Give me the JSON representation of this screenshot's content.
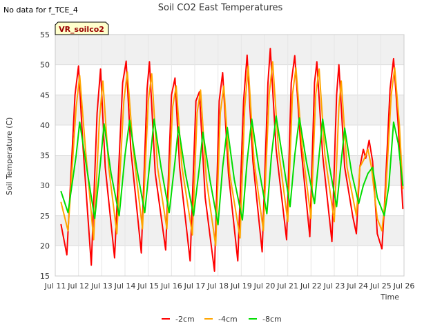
{
  "header": {
    "title": "Soil CO2 East Temperatures",
    "no_data_note": "No data for f_TCE_4",
    "badge": "VR_soilco2"
  },
  "chart_data": {
    "type": "line",
    "title": "Soil CO2 East Temperatures",
    "xlabel": "Time",
    "ylabel": "Soil Temperature (C)",
    "xlim": [
      11,
      26
    ],
    "ylim": [
      15,
      55
    ],
    "x_tick_values": [
      11,
      12,
      13,
      14,
      15,
      16,
      17,
      18,
      19,
      20,
      21,
      22,
      23,
      24,
      25,
      26
    ],
    "x_tick_labels": [
      "Jul 11",
      "Jul 12",
      "Jul 13",
      "Jul 14",
      "Jul 15",
      "Jul 16",
      "Jul 17",
      "Jul 18",
      "Jul 19",
      "Jul 20",
      "Jul 21",
      "Jul 22",
      "Jul 23",
      "Jul 24",
      "Jul 25",
      "Jul 26"
    ],
    "y_ticks": [
      15,
      20,
      25,
      30,
      35,
      40,
      45,
      50,
      55
    ],
    "grid": true,
    "background_bands": "alternating light gray horizontal bands",
    "legend_position": "bottom-center",
    "series": [
      {
        "name": "-2cm",
        "color": "#ff0000",
        "points": [
          [
            11.25,
            23.5
          ],
          [
            11.5,
            18.5
          ],
          [
            11.85,
            45
          ],
          [
            12.0,
            49.8
          ],
          [
            12.2,
            36
          ],
          [
            12.55,
            16.8
          ],
          [
            12.8,
            42
          ],
          [
            12.95,
            49.3
          ],
          [
            13.15,
            33
          ],
          [
            13.55,
            18
          ],
          [
            13.9,
            47
          ],
          [
            14.05,
            50.6
          ],
          [
            14.25,
            36
          ],
          [
            14.7,
            18.8
          ],
          [
            14.95,
            46
          ],
          [
            15.05,
            50.5
          ],
          [
            15.3,
            32
          ],
          [
            15.75,
            19.3
          ],
          [
            16.0,
            45
          ],
          [
            16.15,
            47.8
          ],
          [
            16.35,
            33
          ],
          [
            16.8,
            17.5
          ],
          [
            17.05,
            44
          ],
          [
            17.2,
            45.5
          ],
          [
            17.45,
            28
          ],
          [
            17.85,
            15.8
          ],
          [
            18.05,
            44
          ],
          [
            18.2,
            48.7
          ],
          [
            18.45,
            32
          ],
          [
            18.85,
            17.5
          ],
          [
            19.1,
            44
          ],
          [
            19.25,
            51.6
          ],
          [
            19.5,
            34
          ],
          [
            19.9,
            19
          ],
          [
            20.15,
            47
          ],
          [
            20.25,
            52.7
          ],
          [
            20.5,
            36
          ],
          [
            20.95,
            21
          ],
          [
            21.15,
            47
          ],
          [
            21.3,
            51.5
          ],
          [
            21.55,
            37
          ],
          [
            21.95,
            21.5
          ],
          [
            22.15,
            47
          ],
          [
            22.25,
            50.5
          ],
          [
            22.5,
            35
          ],
          [
            22.9,
            20.7
          ],
          [
            23.1,
            45
          ],
          [
            23.2,
            50
          ],
          [
            23.45,
            33
          ],
          [
            23.8,
            24.8
          ],
          [
            23.95,
            22
          ],
          [
            24.1,
            33
          ],
          [
            24.25,
            36
          ],
          [
            24.35,
            34.5
          ],
          [
            24.5,
            37.5
          ],
          [
            24.65,
            34
          ],
          [
            24.85,
            22
          ],
          [
            25.05,
            19.5
          ],
          [
            25.15,
            26
          ],
          [
            25.4,
            46
          ],
          [
            25.55,
            51
          ],
          [
            25.75,
            40
          ],
          [
            25.95,
            26.2
          ]
        ]
      },
      {
        "name": "-4cm",
        "color": "#ffa500",
        "points": [
          [
            11.25,
            27.2
          ],
          [
            11.55,
            22.5
          ],
          [
            11.9,
            43
          ],
          [
            12.05,
            48.2
          ],
          [
            12.3,
            36
          ],
          [
            12.65,
            21
          ],
          [
            12.9,
            41
          ],
          [
            13.05,
            47.3
          ],
          [
            13.3,
            33
          ],
          [
            13.65,
            22
          ],
          [
            13.95,
            44
          ],
          [
            14.1,
            48.8
          ],
          [
            14.35,
            36
          ],
          [
            14.75,
            22.8
          ],
          [
            15.0,
            44
          ],
          [
            15.15,
            48.5
          ],
          [
            15.4,
            33
          ],
          [
            15.8,
            22.8
          ],
          [
            16.05,
            43
          ],
          [
            16.2,
            46.5
          ],
          [
            16.45,
            33
          ],
          [
            16.9,
            21.8
          ],
          [
            17.1,
            42
          ],
          [
            17.25,
            45.8
          ],
          [
            17.5,
            31
          ],
          [
            17.9,
            20
          ],
          [
            18.1,
            42
          ],
          [
            18.25,
            46.5
          ],
          [
            18.5,
            32
          ],
          [
            18.95,
            21.3
          ],
          [
            19.15,
            43
          ],
          [
            19.3,
            49.8
          ],
          [
            19.55,
            34
          ],
          [
            19.95,
            22.5
          ],
          [
            20.2,
            45
          ],
          [
            20.35,
            50.5
          ],
          [
            20.6,
            36
          ],
          [
            21.0,
            24
          ],
          [
            21.2,
            45
          ],
          [
            21.35,
            49.5
          ],
          [
            21.6,
            37
          ],
          [
            22.0,
            24.5
          ],
          [
            22.2,
            45
          ],
          [
            22.35,
            49.3
          ],
          [
            22.6,
            35
          ],
          [
            23.0,
            24
          ],
          [
            23.2,
            43
          ],
          [
            23.3,
            47.3
          ],
          [
            23.55,
            33
          ],
          [
            23.95,
            25
          ],
          [
            24.1,
            33
          ],
          [
            24.3,
            34.5
          ],
          [
            24.45,
            36
          ],
          [
            24.6,
            33
          ],
          [
            24.85,
            24.5
          ],
          [
            25.05,
            22.5
          ],
          [
            25.2,
            28
          ],
          [
            25.45,
            45
          ],
          [
            25.6,
            49.5
          ],
          [
            25.8,
            40
          ],
          [
            25.95,
            29.5
          ]
        ]
      },
      {
        "name": "-8cm",
        "color": "#00dd00",
        "points": [
          [
            11.25,
            29
          ],
          [
            11.55,
            25.5
          ],
          [
            11.9,
            35
          ],
          [
            12.05,
            40.5
          ],
          [
            12.35,
            33
          ],
          [
            12.7,
            24.5
          ],
          [
            12.95,
            34
          ],
          [
            13.1,
            40.2
          ],
          [
            13.4,
            32
          ],
          [
            13.75,
            25
          ],
          [
            14.0,
            35
          ],
          [
            14.2,
            40.8
          ],
          [
            14.5,
            33
          ],
          [
            14.85,
            25.5
          ],
          [
            15.1,
            35
          ],
          [
            15.25,
            41
          ],
          [
            15.55,
            33
          ],
          [
            15.9,
            25.5
          ],
          [
            16.15,
            34
          ],
          [
            16.3,
            39.7
          ],
          [
            16.6,
            32
          ],
          [
            16.95,
            25
          ],
          [
            17.2,
            33
          ],
          [
            17.35,
            38.8
          ],
          [
            17.65,
            31
          ],
          [
            18.0,
            23.5
          ],
          [
            18.2,
            33
          ],
          [
            18.4,
            39.6
          ],
          [
            18.7,
            31
          ],
          [
            19.05,
            24.3
          ],
          [
            19.25,
            34
          ],
          [
            19.45,
            41
          ],
          [
            19.75,
            33
          ],
          [
            20.1,
            25.3
          ],
          [
            20.3,
            35
          ],
          [
            20.5,
            41.5
          ],
          [
            20.8,
            34
          ],
          [
            21.1,
            26.5
          ],
          [
            21.3,
            35
          ],
          [
            21.5,
            41.2
          ],
          [
            21.8,
            34
          ],
          [
            22.15,
            27
          ],
          [
            22.35,
            35
          ],
          [
            22.5,
            41
          ],
          [
            22.8,
            33
          ],
          [
            23.1,
            26.5
          ],
          [
            23.3,
            34
          ],
          [
            23.45,
            39.5
          ],
          [
            23.75,
            32
          ],
          [
            24.05,
            27
          ],
          [
            24.25,
            30
          ],
          [
            24.45,
            32
          ],
          [
            24.65,
            33
          ],
          [
            24.85,
            28
          ],
          [
            25.15,
            25
          ],
          [
            25.35,
            30
          ],
          [
            25.55,
            40.5
          ],
          [
            25.75,
            37
          ],
          [
            25.95,
            30
          ]
        ]
      }
    ]
  }
}
